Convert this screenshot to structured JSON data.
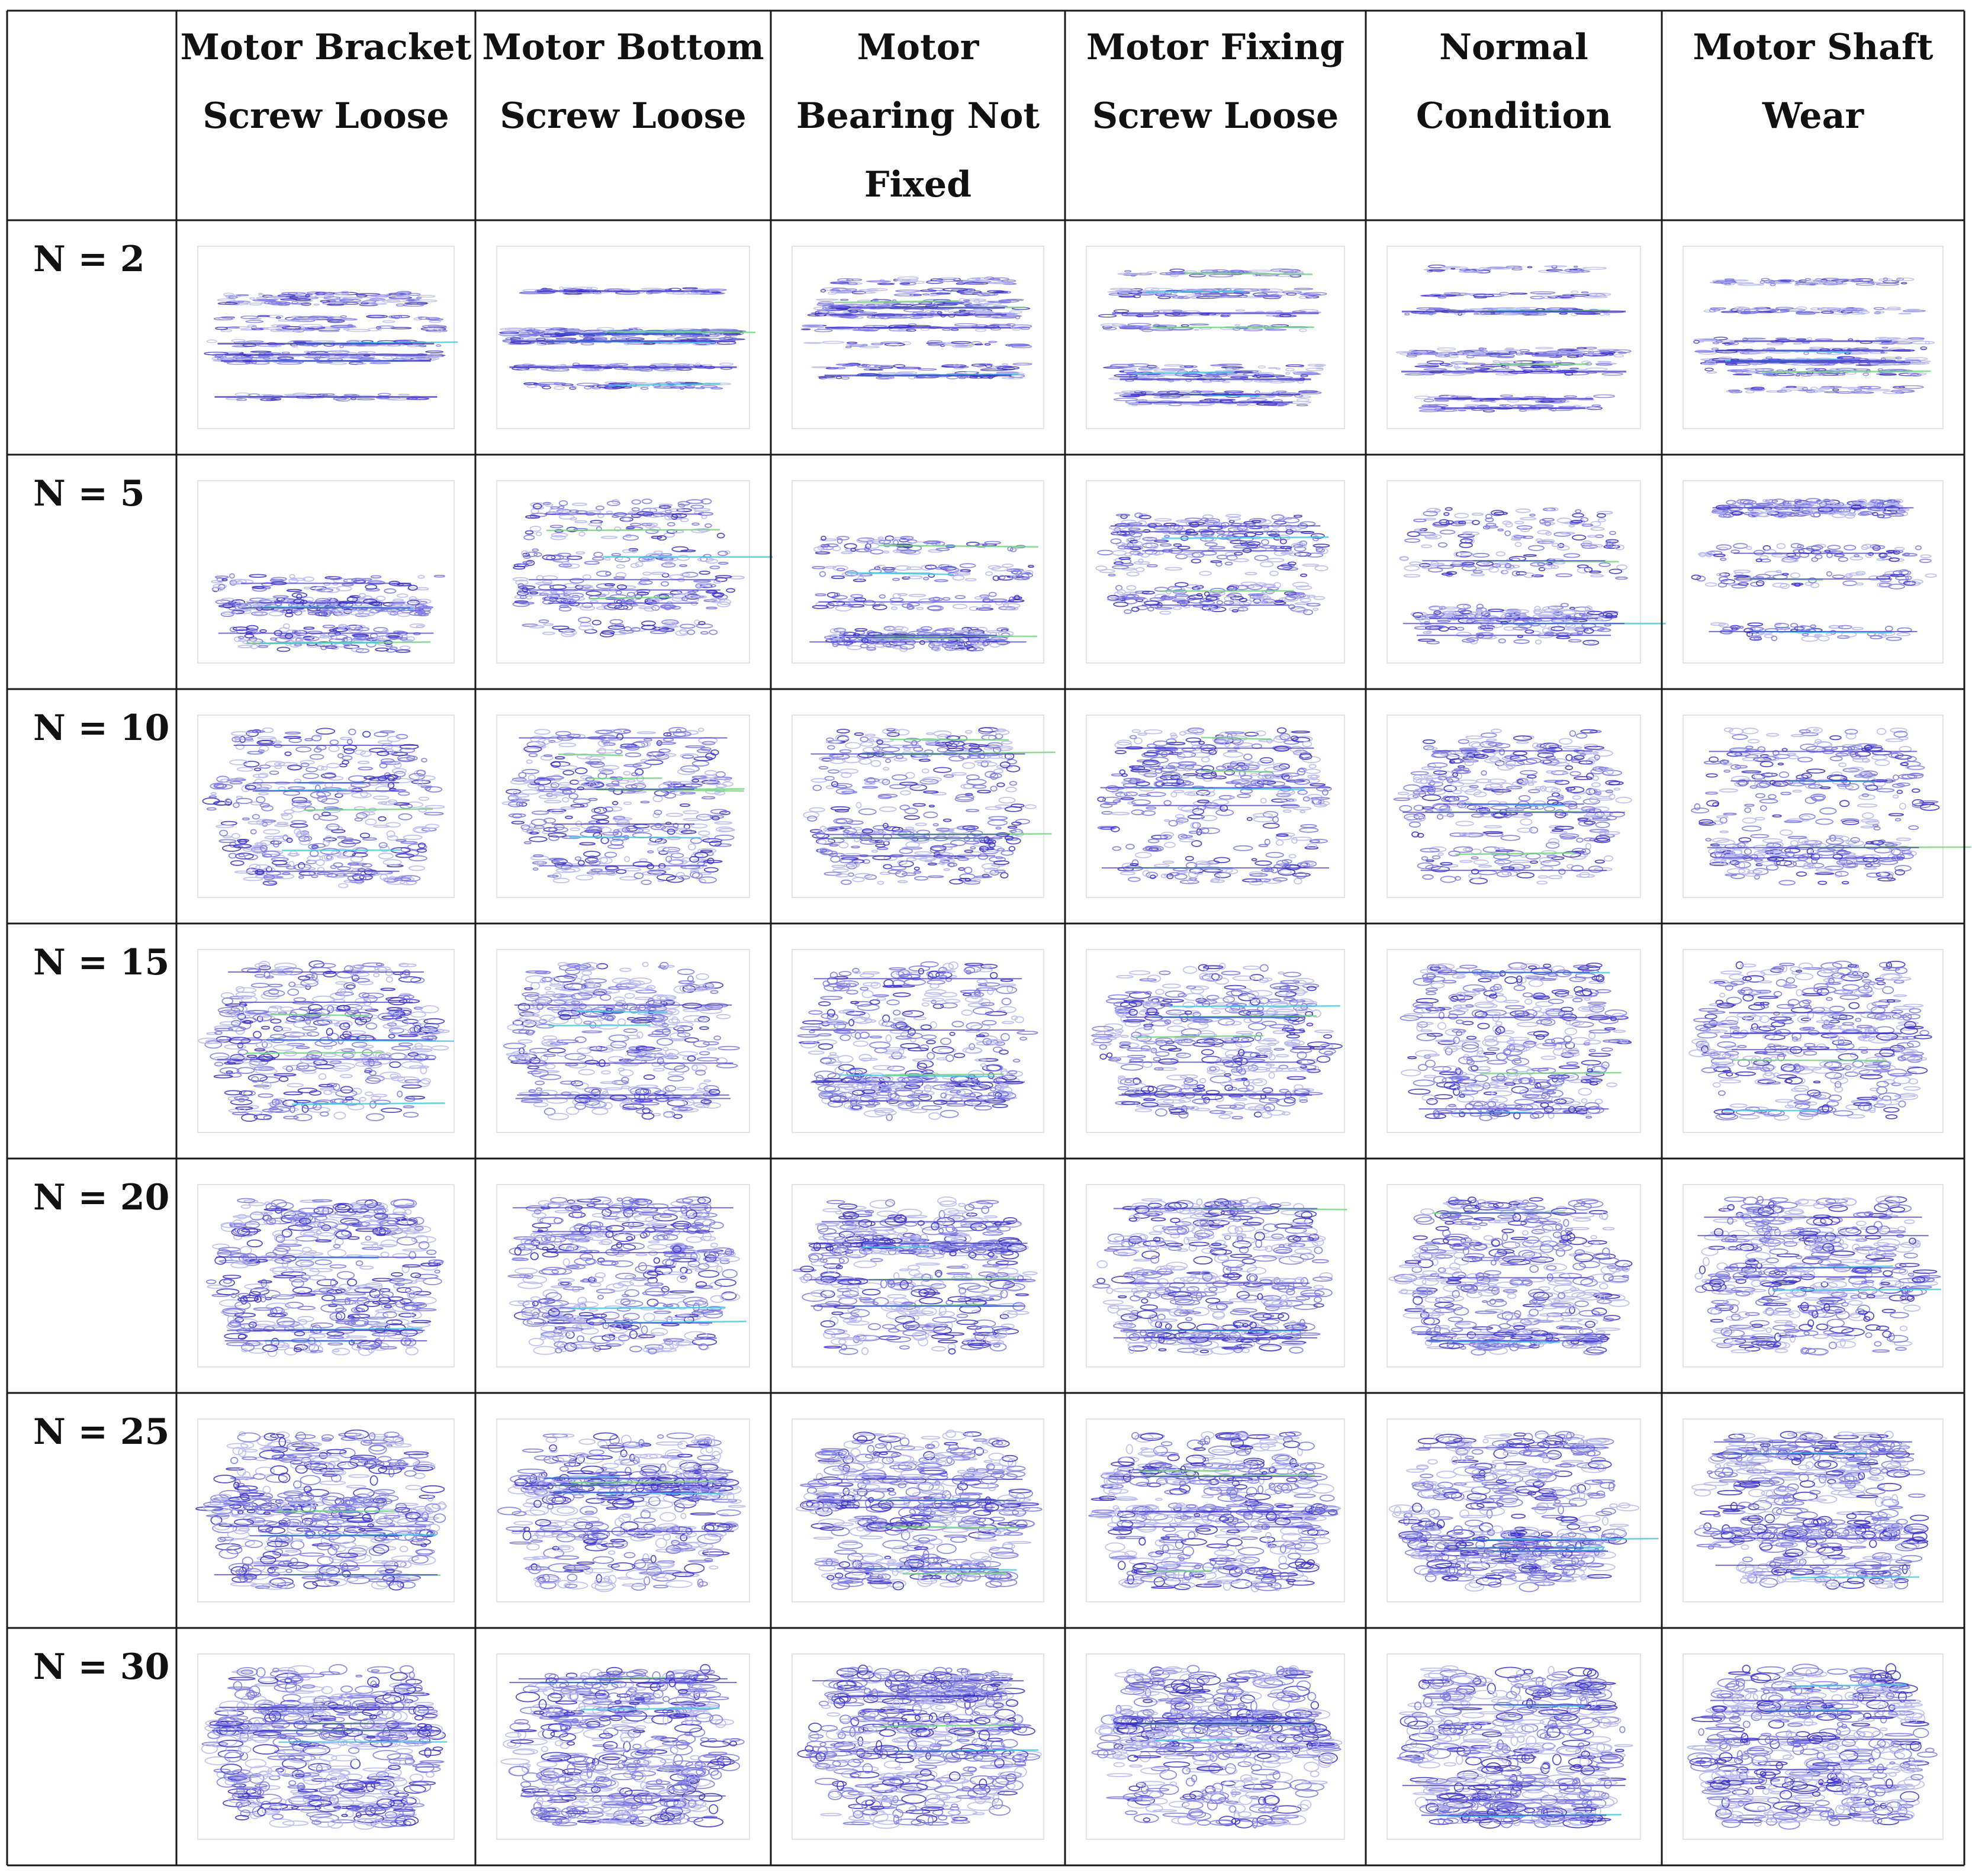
{
  "figure": {
    "corner_label": "",
    "column_headers": [
      [
        "Motor Bracket",
        "Screw Loose"
      ],
      [
        "Motor Bottom",
        "Screw Loose"
      ],
      [
        "Motor",
        "Bearing Not",
        "Fixed"
      ],
      [
        "Motor Fixing",
        "Screw Loose"
      ],
      [
        "Normal",
        "Condition"
      ],
      [
        "Motor Shaft",
        "Wear"
      ]
    ],
    "row_labels": [
      "N = 2",
      "N = 5",
      "N = 10",
      "N = 15",
      "N = 20",
      "N = 25",
      "N = 30"
    ],
    "plot_type": "contour",
    "colors": {
      "grid_line": "#1a1a1a",
      "contour_light": "#b9b9ee",
      "contour_mid": "#7b78e0",
      "contour_dark": "#3a2fc4",
      "contour_cyan": "#44c8e0",
      "contour_green": "#6fd37a",
      "axis": "#bdbdbd"
    }
  }
}
